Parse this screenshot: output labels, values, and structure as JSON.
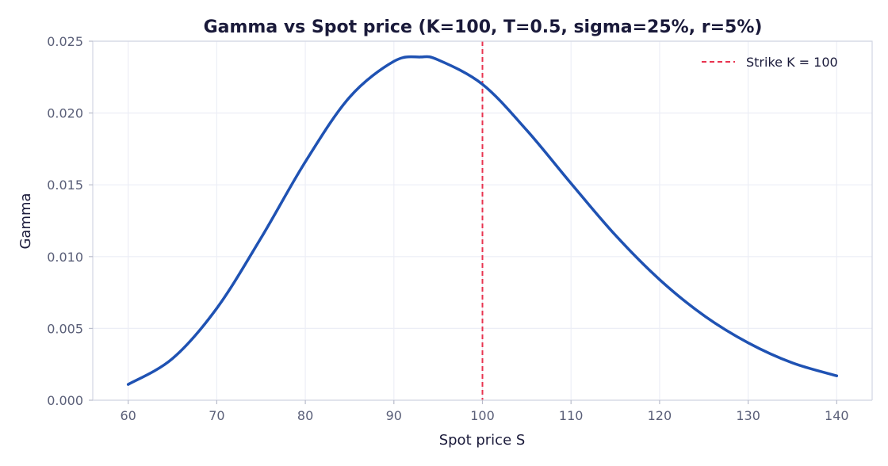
{
  "chart_data": {
    "type": "line",
    "title": "Gamma vs Spot price  (K=100, T=0.5, sigma=25%, r=5%)",
    "xlabel": "Spot price S",
    "ylabel": "Gamma",
    "xlim": [
      56,
      144
    ],
    "ylim": [
      0,
      0.025
    ],
    "grid": true,
    "legend_position": "top-right",
    "x_ticks": [
      60,
      70,
      80,
      90,
      100,
      110,
      120,
      130,
      140
    ],
    "y_ticks": [
      0,
      0.005,
      0.01,
      0.015,
      0.02,
      0.025
    ],
    "x_tick_labels": [
      "60",
      "70",
      "80",
      "90",
      "100",
      "110",
      "120",
      "130",
      "140"
    ],
    "y_tick_labels": [
      "0.000",
      "0.005",
      "0.010",
      "0.015",
      "0.020",
      "0.025"
    ],
    "series": [
      {
        "color": "#1f52b3",
        "x": [
          60,
          65,
          70,
          75,
          80,
          85,
          90,
          93,
          95,
          100,
          105,
          110,
          115,
          120,
          125,
          130,
          135,
          140
        ],
        "y": [
          0.0011,
          0.0029,
          0.0064,
          0.0113,
          0.0166,
          0.0211,
          0.0236,
          0.0239,
          0.0237,
          0.022,
          0.0188,
          0.0151,
          0.0115,
          0.0084,
          0.0059,
          0.004,
          0.0026,
          0.0017
        ]
      }
    ],
    "reference_lines": [
      {
        "orientation": "vertical",
        "x": 100,
        "style": "dashed",
        "color": "#e8334f",
        "label": "Strike K = 100"
      }
    ]
  }
}
